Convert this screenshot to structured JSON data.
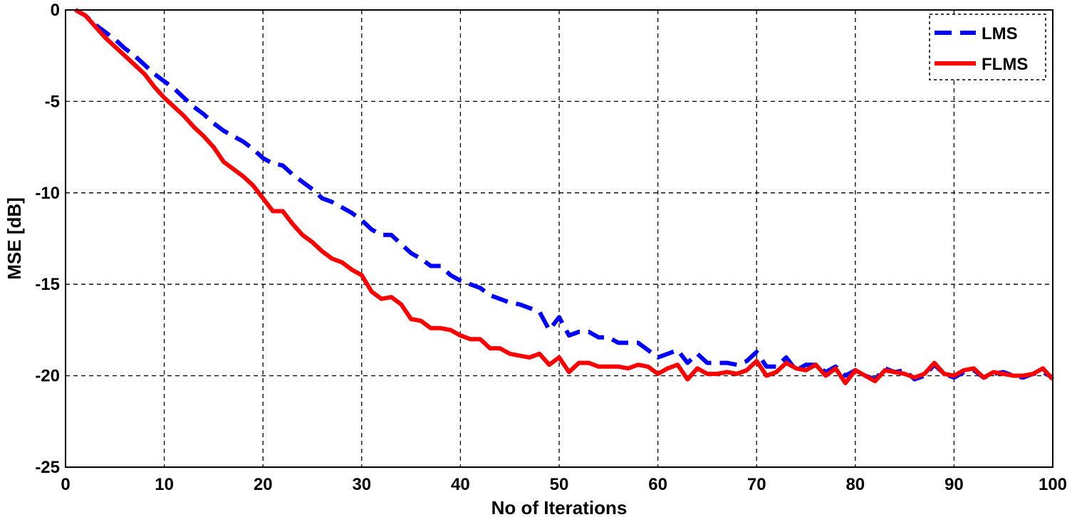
{
  "chart_data": {
    "type": "line",
    "title": "",
    "xlabel": "No of Iterations",
    "ylabel": "MSE [dB]",
    "xlim": [
      0,
      100
    ],
    "ylim": [
      -25,
      0
    ],
    "xticks": [
      "0",
      "10",
      "20",
      "30",
      "40",
      "50",
      "60",
      "70",
      "80",
      "90",
      "100"
    ],
    "yticks": [
      "0",
      "-5",
      "-10",
      "-15",
      "-20",
      "-25"
    ],
    "grid": true,
    "legend_position": "top-right",
    "x": [
      1,
      2,
      3,
      4,
      5,
      6,
      7,
      8,
      9,
      10,
      11,
      12,
      13,
      14,
      15,
      16,
      17,
      18,
      19,
      20,
      21,
      22,
      23,
      24,
      25,
      26,
      27,
      28,
      29,
      30,
      31,
      32,
      33,
      34,
      35,
      36,
      37,
      38,
      39,
      40,
      41,
      42,
      43,
      44,
      45,
      46,
      47,
      48,
      49,
      50,
      51,
      52,
      53,
      54,
      55,
      56,
      57,
      58,
      59,
      60,
      61,
      62,
      63,
      64,
      65,
      66,
      67,
      68,
      69,
      70,
      71,
      72,
      73,
      74,
      75,
      76,
      77,
      78,
      79,
      80,
      81,
      82,
      83,
      84,
      85,
      86,
      87,
      88,
      89,
      90,
      91,
      92,
      93,
      94,
      95,
      96,
      97,
      98,
      99,
      100
    ],
    "series": [
      {
        "name": "LMS",
        "color": "#0000ff",
        "dash": "dashed",
        "values": [
          0,
          -0.3,
          -0.8,
          -1.2,
          -1.6,
          -2.1,
          -2.5,
          -3.0,
          -3.5,
          -3.9,
          -4.3,
          -4.8,
          -5.3,
          -5.7,
          -6.2,
          -6.6,
          -6.9,
          -7.2,
          -7.6,
          -8.1,
          -8.4,
          -8.5,
          -9.0,
          -9.4,
          -9.8,
          -10.3,
          -10.5,
          -10.8,
          -11.1,
          -11.5,
          -12.0,
          -12.3,
          -12.3,
          -12.8,
          -13.3,
          -13.6,
          -14.0,
          -14.0,
          -14.5,
          -14.8,
          -15.0,
          -15.2,
          -15.6,
          -15.8,
          -16.0,
          -16.1,
          -16.3,
          -16.5,
          -17.5,
          -16.8,
          -17.8,
          -17.6,
          -17.6,
          -17.9,
          -17.9,
          -18.2,
          -18.2,
          -18.2,
          -18.6,
          -19.0,
          -18.8,
          -18.6,
          -19.3,
          -18.8,
          -19.3,
          -19.3,
          -19.3,
          -19.4,
          -19.2,
          -18.7,
          -19.5,
          -19.5,
          -19.0,
          -19.7,
          -19.4,
          -19.4,
          -19.8,
          -19.5,
          -20.0,
          -19.7,
          -20.0,
          -20.2,
          -19.6,
          -19.8,
          -19.7,
          -20.2,
          -20.0,
          -19.4,
          -19.9,
          -20.1,
          -19.8,
          -19.7,
          -20.1,
          -19.9,
          -19.8,
          -20.0,
          -20.1,
          -19.9,
          -19.8,
          -20.1
        ]
      },
      {
        "name": "FLMS",
        "color": "#ff0000",
        "dash": "solid",
        "values": [
          0,
          -0.3,
          -0.9,
          -1.5,
          -2.0,
          -2.5,
          -3.0,
          -3.5,
          -4.2,
          -4.8,
          -5.3,
          -5.8,
          -6.4,
          -6.9,
          -7.5,
          -8.3,
          -8.7,
          -9.1,
          -9.6,
          -10.3,
          -11.0,
          -11.0,
          -11.7,
          -12.3,
          -12.7,
          -13.2,
          -13.6,
          -13.8,
          -14.2,
          -14.5,
          -15.4,
          -15.8,
          -15.7,
          -16.1,
          -16.9,
          -17.0,
          -17.4,
          -17.4,
          -17.5,
          -17.8,
          -18.0,
          -18.0,
          -18.5,
          -18.5,
          -18.8,
          -18.9,
          -19.0,
          -18.8,
          -19.4,
          -19.0,
          -19.8,
          -19.3,
          -19.3,
          -19.5,
          -19.5,
          -19.5,
          -19.6,
          -19.4,
          -19.5,
          -19.9,
          -19.6,
          -19.4,
          -20.2,
          -19.6,
          -19.9,
          -19.9,
          -19.8,
          -19.9,
          -19.7,
          -19.2,
          -20.0,
          -19.8,
          -19.3,
          -19.6,
          -19.7,
          -19.4,
          -20.0,
          -19.6,
          -20.4,
          -19.7,
          -20.0,
          -20.3,
          -19.7,
          -19.8,
          -19.9,
          -20.1,
          -19.9,
          -19.3,
          -19.9,
          -20.0,
          -19.7,
          -19.6,
          -20.1,
          -19.8,
          -19.9,
          -20.0,
          -20.0,
          -19.9,
          -19.6,
          -20.2
        ]
      }
    ]
  }
}
